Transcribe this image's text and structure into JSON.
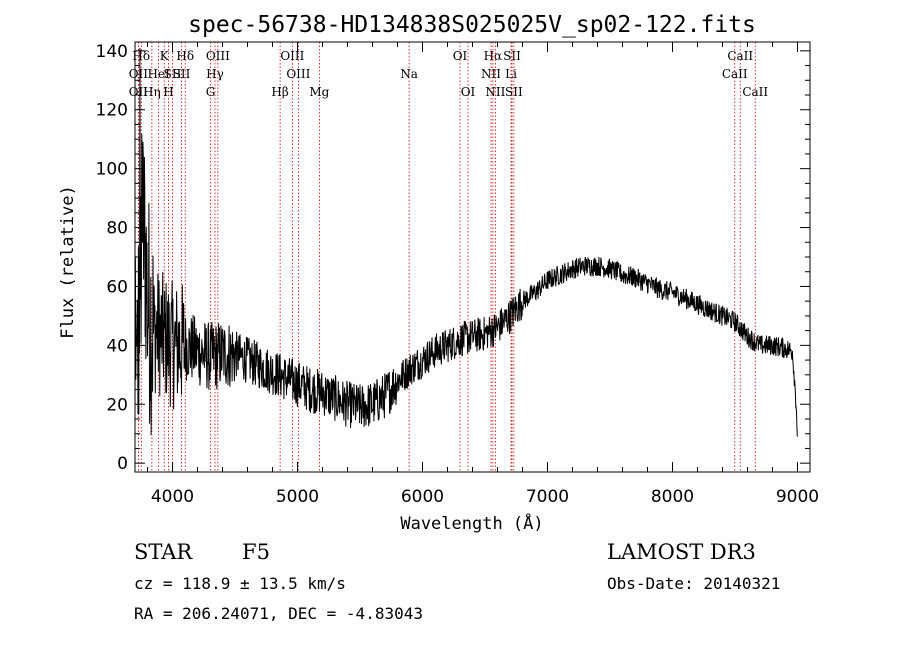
{
  "chart_data": {
    "type": "line",
    "title": "spec-56738-HD134838S025025V_sp02-122.fits",
    "xlabel": "Wavelength (Å)",
    "ylabel": "Flux (relative)",
    "xlim": [
      3700,
      9100
    ],
    "ylim": [
      -3,
      143
    ],
    "xticks": [
      4000,
      5000,
      6000,
      7000,
      8000,
      9000
    ],
    "yticks": [
      0,
      20,
      40,
      60,
      80,
      100,
      120,
      140
    ],
    "spectrum_anchors": [
      [
        3700,
        5
      ],
      [
        3720,
        35
      ],
      [
        3740,
        60
      ],
      [
        3760,
        80
      ],
      [
        3780,
        75
      ],
      [
        3800,
        55
      ],
      [
        3850,
        45
      ],
      [
        3900,
        44
      ],
      [
        3950,
        42
      ],
      [
        4000,
        40
      ],
      [
        4100,
        40
      ],
      [
        4200,
        38
      ],
      [
        4300,
        36
      ],
      [
        4400,
        37
      ],
      [
        4500,
        37
      ],
      [
        4600,
        35
      ],
      [
        4700,
        33
      ],
      [
        4800,
        31
      ],
      [
        4900,
        29
      ],
      [
        5000,
        27
      ],
      [
        5100,
        25
      ],
      [
        5200,
        24
      ],
      [
        5300,
        22
      ],
      [
        5400,
        20
      ],
      [
        5500,
        19
      ],
      [
        5600,
        20
      ],
      [
        5700,
        23
      ],
      [
        5800,
        28
      ],
      [
        5900,
        32
      ],
      [
        6000,
        35
      ],
      [
        6100,
        38
      ],
      [
        6200,
        40
      ],
      [
        6300,
        42
      ],
      [
        6400,
        43
      ],
      [
        6500,
        44
      ],
      [
        6600,
        46
      ],
      [
        6700,
        50
      ],
      [
        6800,
        55
      ],
      [
        6900,
        58
      ],
      [
        7000,
        62
      ],
      [
        7100,
        64
      ],
      [
        7200,
        66
      ],
      [
        7300,
        67
      ],
      [
        7400,
        67
      ],
      [
        7500,
        66
      ],
      [
        7600,
        64
      ],
      [
        7700,
        63
      ],
      [
        7800,
        61
      ],
      [
        7900,
        59
      ],
      [
        8000,
        58
      ],
      [
        8100,
        56
      ],
      [
        8200,
        54
      ],
      [
        8300,
        52
      ],
      [
        8400,
        50
      ],
      [
        8500,
        48
      ],
      [
        8600,
        43
      ],
      [
        8700,
        40
      ],
      [
        8800,
        40
      ],
      [
        8900,
        39
      ],
      [
        8960,
        38
      ],
      [
        8990,
        20
      ],
      [
        9000,
        8
      ]
    ],
    "spectral_lines": [
      {
        "label": "Hδ",
        "wavelength": 3750,
        "row": 1
      },
      {
        "label": "OII",
        "wavelength": 3727,
        "row": 2
      },
      {
        "label": "OII",
        "wavelength": 3727,
        "row": 3
      },
      {
        "label": "Hη",
        "wavelength": 3835,
        "row": 3
      },
      {
        "label": "HeI",
        "wavelength": 3889,
        "row": 2
      },
      {
        "label": "K",
        "wavelength": 3934,
        "row": 1
      },
      {
        "label": "SII",
        "wavelength": 4000,
        "row": 2
      },
      {
        "label": "H",
        "wavelength": 3968,
        "row": 3
      },
      {
        "label": "Hδ",
        "wavelength": 4102,
        "row": 1
      },
      {
        "label": "SII",
        "wavelength": 4072,
        "row": 2
      },
      {
        "label": "OIII",
        "wavelength": 4363,
        "row": 1
      },
      {
        "label": "Hγ",
        "wavelength": 4340,
        "row": 2
      },
      {
        "label": "G",
        "wavelength": 4304,
        "row": 3
      },
      {
        "label": "Hβ",
        "wavelength": 4861,
        "row": 3
      },
      {
        "label": "OIII",
        "wavelength": 4959,
        "row": 1
      },
      {
        "label": "OIII",
        "wavelength": 5007,
        "row": 2
      },
      {
        "label": "Mg",
        "wavelength": 5175,
        "row": 3
      },
      {
        "label": "Na",
        "wavelength": 5893,
        "row": 2
      },
      {
        "label": "OI",
        "wavelength": 6300,
        "row": 1
      },
      {
        "label": "OI",
        "wavelength": 6364,
        "row": 3
      },
      {
        "label": "Hα",
        "wavelength": 6563,
        "row": 1
      },
      {
        "label": "NII",
        "wavelength": 6548,
        "row": 2
      },
      {
        "label": "NII",
        "wavelength": 6583,
        "row": 3
      },
      {
        "label": "SII",
        "wavelength": 6716,
        "row": 1
      },
      {
        "label": "Li",
        "wavelength": 6708,
        "row": 2
      },
      {
        "label": "SII",
        "wavelength": 6731,
        "row": 3
      },
      {
        "label": "CaII",
        "wavelength": 8542,
        "row": 1
      },
      {
        "label": "CaII",
        "wavelength": 8498,
        "row": 2
      },
      {
        "label": "CaII",
        "wavelength": 8662,
        "row": 3
      }
    ]
  },
  "footer": {
    "class": "STAR",
    "subclass": "F5",
    "survey": "LAMOST DR3",
    "redshift": "cz = 118.9 ± 13.5 km/s",
    "obs_date": "Obs-Date: 20140321",
    "coords": "RA = 206.24071, DEC =  -4.83043"
  }
}
